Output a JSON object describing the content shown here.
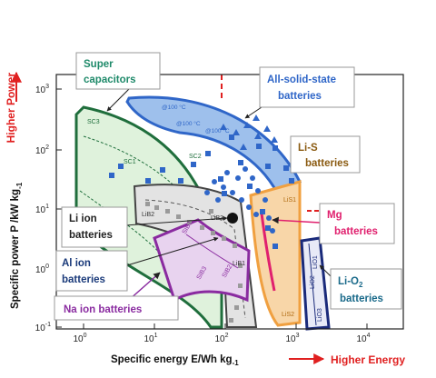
{
  "axes": {
    "ylabel_main": "Specific power P /kW kg",
    "ylabel_exp": "-1",
    "xlabel_main": "Specific energy E/Wh kg",
    "xlabel_exp": "-1",
    "higher_power": "Higher Power",
    "higher_energy": "Higher Energy",
    "x_ticks": [
      {
        "base": "10",
        "exp": "0"
      },
      {
        "base": "10",
        "exp": "1"
      },
      {
        "base": "10",
        "exp": "2"
      },
      {
        "base": "10",
        "exp": "3"
      },
      {
        "base": "10",
        "exp": "4"
      }
    ],
    "y_ticks": [
      {
        "base": "10",
        "exp": "3"
      },
      {
        "base": "10",
        "exp": "2"
      },
      {
        "base": "10",
        "exp": "1"
      },
      {
        "base": "10",
        "exp": "0"
      },
      {
        "base": "10",
        "exp": "-1"
      }
    ]
  },
  "callouts": {
    "supercap_l1": "Super",
    "supercap_l2": "capacitors",
    "solid_l1": "All-solid-state",
    "solid_l2": "batteries",
    "lis_l1": "Li-S",
    "lis_l2": "batteries",
    "liion_l1": "Li ion",
    "liion_l2": "batteries",
    "mg_l1": "Mg",
    "mg_l2": "batteries",
    "alion_l1": "Al ion",
    "alion_l2": "batteries",
    "lio2_l1": "Li-O",
    "lio2_sub": "2",
    "lio2_l2": "batteries",
    "naion": "Na  ion  batteries"
  },
  "tags": {
    "sc1": "SC1",
    "sc2": "SC2",
    "sc3": "SC3",
    "lib1": "LiB1",
    "lib2": "LiB2",
    "lib3": "LiB3",
    "sib1": "SIB1",
    "sib2": "SIB2",
    "sib3": "SIB3",
    "lis1": "LiS1",
    "lis2": "LiS2",
    "lio1": "LiO1",
    "lio2": "LiO2",
    "lio3": "LiO3",
    "t100a": "@100 °C",
    "t100b": "@100 °C",
    "t100c": "@100 °C"
  },
  "colors": {
    "red": "#e02020",
    "green": "#1f6e3c",
    "blue": "#2f66c8",
    "purple": "#8a2ba0",
    "orange": "#f0a040",
    "magenta": "#e0206e",
    "navy": "#1a2a7a",
    "teal": "#1a6a8a",
    "brown": "#8a5a10"
  }
}
